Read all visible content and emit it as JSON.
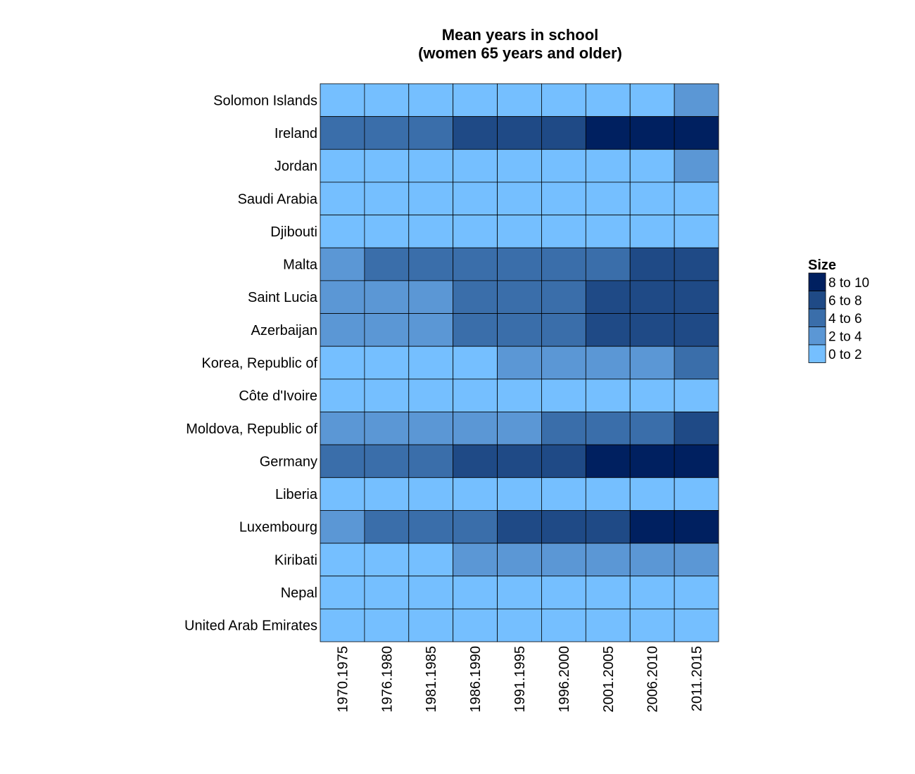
{
  "chart_data": {
    "type": "heatmap",
    "title": [
      "Mean years in school",
      "(women 65 years and older)"
    ],
    "xlabel": "",
    "ylabel": "",
    "x_categories": [
      "1970.1975",
      "1976.1980",
      "1981.1985",
      "1986.1990",
      "1991.1995",
      "1996.2000",
      "2001.2005",
      "2006.2010",
      "2011.2015"
    ],
    "y_categories": [
      "Solomon Islands",
      "Ireland",
      "Jordan",
      "Saudi Arabia",
      "Djibouti",
      "Malta",
      "Saint Lucia",
      "Azerbaijan",
      "Korea, Republic of",
      "Côte d'Ivoire",
      "Moldova, Republic of",
      "Germany",
      "Liberia",
      "Luxembourg",
      "Kiribati",
      "Nepal",
      "United Arab Emirates"
    ],
    "legend": {
      "title": "Size",
      "placement": "right",
      "bins": [
        {
          "label": "8 to 10",
          "color": "#002060"
        },
        {
          "label": "6 to 8",
          "color": "#1f4a86"
        },
        {
          "label": "4 to 6",
          "color": "#3a6eaa"
        },
        {
          "label": "2 to 4",
          "color": "#5b97d5"
        },
        {
          "label": "0 to 2",
          "color": "#75bfff"
        }
      ]
    },
    "bin_index_note_levels": [
      "0 to 2",
      "2 to 4",
      "4 to 6",
      "6 to 8",
      "8 to 10"
    ],
    "values_bin": [
      [
        0,
        0,
        0,
        0,
        0,
        0,
        0,
        0,
        1
      ],
      [
        2,
        2,
        2,
        3,
        3,
        3,
        4,
        4,
        4
      ],
      [
        0,
        0,
        0,
        0,
        0,
        0,
        0,
        0,
        1
      ],
      [
        0,
        0,
        0,
        0,
        0,
        0,
        0,
        0,
        0
      ],
      [
        0,
        0,
        0,
        0,
        0,
        0,
        0,
        0,
        0
      ],
      [
        1,
        2,
        2,
        2,
        2,
        2,
        2,
        3,
        3
      ],
      [
        1,
        1,
        1,
        2,
        2,
        2,
        3,
        3,
        3
      ],
      [
        1,
        1,
        1,
        2,
        2,
        2,
        3,
        3,
        3
      ],
      [
        0,
        0,
        0,
        0,
        1,
        1,
        1,
        1,
        2
      ],
      [
        0,
        0,
        0,
        0,
        0,
        0,
        0,
        0,
        0
      ],
      [
        1,
        1,
        1,
        1,
        1,
        2,
        2,
        2,
        3
      ],
      [
        2,
        2,
        2,
        3,
        3,
        3,
        4,
        4,
        4
      ],
      [
        0,
        0,
        0,
        0,
        0,
        0,
        0,
        0,
        0
      ],
      [
        1,
        2,
        2,
        2,
        3,
        3,
        3,
        4,
        4
      ],
      [
        0,
        0,
        0,
        1,
        1,
        1,
        1,
        1,
        1
      ],
      [
        0,
        0,
        0,
        0,
        0,
        0,
        0,
        0,
        0
      ],
      [
        0,
        0,
        0,
        0,
        0,
        0,
        0,
        0,
        0
      ]
    ],
    "grid": false
  }
}
